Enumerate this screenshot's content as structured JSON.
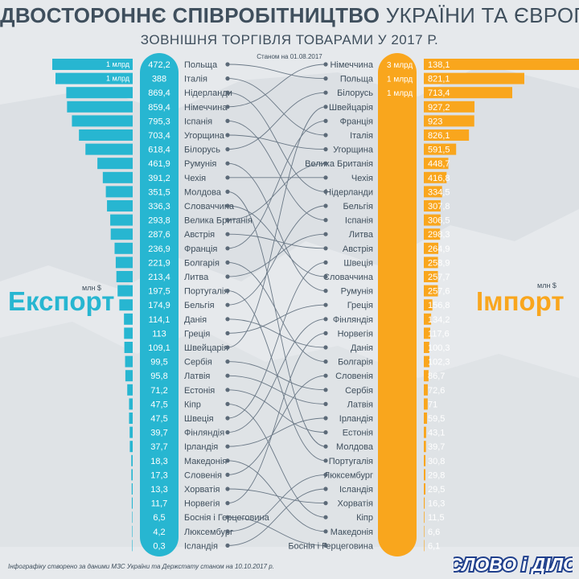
{
  "header": {
    "title_bold": "ДВОСТОРОННЄ СПІВРОБІТНИЦТВО",
    "title_light": "УКРАЇНИ ТА ЄВРОПИ",
    "subtitle": "ЗОВНІШНЯ ТОРГІВЛЯ ТОВАРАМИ У 2017 Р.",
    "as_of": "Станом на 01.08.2017"
  },
  "labels": {
    "export": "Експорт",
    "import": "Імпорт",
    "unit": "млн $"
  },
  "footer": {
    "note": "Інфографіку створено за даними МЗС України та Держстату станом на   10.10.2017 р.",
    "brand": "СЛОВО і ДІЛО"
  },
  "colors": {
    "export": "#27b6d1",
    "import": "#f9a61d",
    "text": "#3f4f5d",
    "background": "#e6e9ec"
  },
  "chart_data": {
    "type": "bar",
    "unit": "млн $",
    "export": [
      {
        "country": "Польща",
        "value": 1472.2,
        "label": "472,2",
        "bar_label": "1 млрд"
      },
      {
        "country": "Італія",
        "value": 1388,
        "label": "388",
        "bar_label": "1 млрд"
      },
      {
        "country": "Нідерланди",
        "value": 869.4,
        "label": "869,4"
      },
      {
        "country": "Німеччина",
        "value": 859.4,
        "label": "859,4"
      },
      {
        "country": "Іспанія",
        "value": 795.3,
        "label": "795,3"
      },
      {
        "country": "Угорщина",
        "value": 703.4,
        "label": "703,4"
      },
      {
        "country": "Білорусь",
        "value": 618.4,
        "label": "618,4"
      },
      {
        "country": "Румунія",
        "value": 461.9,
        "label": "461,9"
      },
      {
        "country": "Чехія",
        "value": 391.2,
        "label": "391,2"
      },
      {
        "country": "Молдова",
        "value": 351.5,
        "label": "351,5"
      },
      {
        "country": "Словаччина",
        "value": 336.3,
        "label": "336,3"
      },
      {
        "country": "Велика Британія",
        "value": 293.8,
        "label": "293,8"
      },
      {
        "country": "Австрія",
        "value": 287.6,
        "label": "287,6"
      },
      {
        "country": "Франція",
        "value": 236.9,
        "label": "236,9"
      },
      {
        "country": "Болгарія",
        "value": 221.9,
        "label": "221,9"
      },
      {
        "country": "Литва",
        "value": 213.4,
        "label": "213,4"
      },
      {
        "country": "Португалія",
        "value": 197.5,
        "label": "197,5"
      },
      {
        "country": "Бельгія",
        "value": 174.9,
        "label": "174,9"
      },
      {
        "country": "Данія",
        "value": 114.1,
        "label": "114,1"
      },
      {
        "country": "Греція",
        "value": 113,
        "label": "113"
      },
      {
        "country": "Швейцарія",
        "value": 109.1,
        "label": "109,1"
      },
      {
        "country": "Сербія",
        "value": 99.5,
        "label": "99,5"
      },
      {
        "country": "Латвія",
        "value": 95.8,
        "label": "95,8"
      },
      {
        "country": "Естонія",
        "value": 71.2,
        "label": "71,2"
      },
      {
        "country": "Кіпр",
        "value": 47.5,
        "label": "47,5"
      },
      {
        "country": "Швеція",
        "value": 47.5,
        "label": "47,5"
      },
      {
        "country": "Фінляндія",
        "value": 39.7,
        "label": "39,7"
      },
      {
        "country": "Ірландія",
        "value": 37.7,
        "label": "37,7"
      },
      {
        "country": "Македонія",
        "value": 18.3,
        "label": "18,3"
      },
      {
        "country": "Словенія",
        "value": 17.3,
        "label": "17,3"
      },
      {
        "country": "Хорватія",
        "value": 13.3,
        "label": "13,3"
      },
      {
        "country": "Норвегія",
        "value": 11.7,
        "label": "11,7"
      },
      {
        "country": "Боснія і Герцеговина",
        "value": 6.5,
        "label": "6,5"
      },
      {
        "country": "Люксембург",
        "value": 4.2,
        "label": "4,2"
      },
      {
        "country": "Ісландія",
        "value": 0.3,
        "label": "0,3"
      }
    ],
    "import": [
      {
        "country": "Німеччина",
        "value": 3138.1,
        "label": "138,1",
        "bar_label": "3 млрд"
      },
      {
        "country": "Польща",
        "value": 1821.1,
        "label": "821,1",
        "bar_label": "1 млрд"
      },
      {
        "country": "Білорусь",
        "value": 1713.4,
        "label": "713,4",
        "bar_label": "1 млрд"
      },
      {
        "country": "Швейцарія",
        "value": 927.2,
        "label": "927,2"
      },
      {
        "country": "Франція",
        "value": 923,
        "label": "923"
      },
      {
        "country": "Італія",
        "value": 826.1,
        "label": "826,1"
      },
      {
        "country": "Угорщина",
        "value": 591.5,
        "label": "591,5"
      },
      {
        "country": "Велика Британія",
        "value": 448.7,
        "label": "448,7"
      },
      {
        "country": "Чехія",
        "value": 416.8,
        "label": "416,8"
      },
      {
        "country": "Нідерланди",
        "value": 334.5,
        "label": "334,5"
      },
      {
        "country": "Бельгія",
        "value": 307.8,
        "label": "307,8"
      },
      {
        "country": "Іспанія",
        "value": 306.5,
        "label": "306,5"
      },
      {
        "country": "Литва",
        "value": 298.3,
        "label": "298,3"
      },
      {
        "country": "Австрія",
        "value": 264.9,
        "label": "264,9"
      },
      {
        "country": "Швеція",
        "value": 258.9,
        "label": "258,9"
      },
      {
        "country": "Словаччина",
        "value": 257.7,
        "label": "257,7"
      },
      {
        "country": "Румунія",
        "value": 257.6,
        "label": "257,6"
      },
      {
        "country": "Греція",
        "value": 156.8,
        "label": "156,8"
      },
      {
        "country": "Фінляндія",
        "value": 134.2,
        "label": "134,2"
      },
      {
        "country": "Норвегія",
        "value": 117.6,
        "label": "117,6"
      },
      {
        "country": "Данія",
        "value": 100.3,
        "label": "100,3"
      },
      {
        "country": "Болгарія",
        "value": 102.3,
        "label": "102,3"
      },
      {
        "country": "Словенія",
        "value": 86.7,
        "label": "86,7"
      },
      {
        "country": "Сербія",
        "value": 72.6,
        "label": "72,6"
      },
      {
        "country": "Латвія",
        "value": 71,
        "label": "71"
      },
      {
        "country": "Ірландія",
        "value": 59.5,
        "label": "59,5"
      },
      {
        "country": "Естонія",
        "value": 43.1,
        "label": "43,1"
      },
      {
        "country": "Молдова",
        "value": 39.7,
        "label": "39,7"
      },
      {
        "country": "Португалія",
        "value": 30.8,
        "label": "30,8"
      },
      {
        "country": "Люксембург",
        "value": 29.8,
        "label": "29,8"
      },
      {
        "country": "Ісландія",
        "value": 29.5,
        "label": "29,5"
      },
      {
        "country": "Хорватія",
        "value": 16.3,
        "label": "16,3"
      },
      {
        "country": "Кіпр",
        "value": 11.5,
        "label": "11,5"
      },
      {
        "country": "Македонія",
        "value": 6.6,
        "label": "6,6"
      },
      {
        "country": "Боснія і Герцеговина",
        "value": 6.1,
        "label": "6,1"
      }
    ]
  }
}
